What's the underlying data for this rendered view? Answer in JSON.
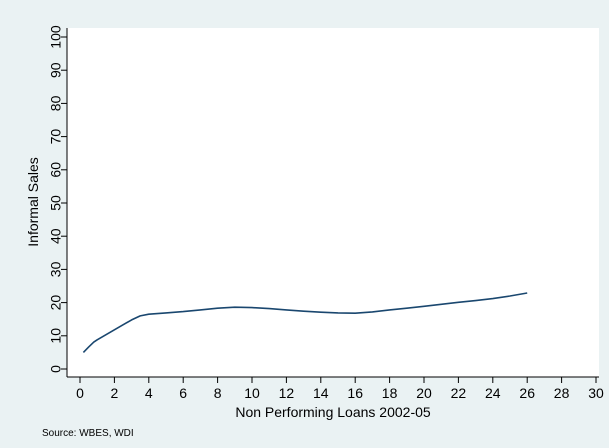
{
  "chart_data": {
    "type": "line",
    "title": "",
    "xlabel": "Non Performing Loans 2002-05",
    "ylabel": "Informal Sales",
    "note": "Source: WBES, WDI",
    "xlim": [
      0,
      30
    ],
    "ylim": [
      0,
      100
    ],
    "x_ticks": [
      0,
      2,
      4,
      6,
      8,
      10,
      12,
      14,
      16,
      18,
      20,
      22,
      24,
      26,
      28,
      30
    ],
    "y_ticks": [
      0,
      10,
      20,
      30,
      40,
      50,
      60,
      70,
      80,
      90,
      100
    ],
    "grid": false,
    "legend": "none",
    "colors": {
      "line": "#1a476f",
      "plot_bg": "#ffffff",
      "figure_bg": "#eaf2f3"
    },
    "series": [
      {
        "x": [
          0.2,
          0.5,
          0.8,
          1.0,
          1.5,
          2.0,
          2.5,
          3.0,
          3.5,
          4.0,
          4.5,
          5.0,
          6.0,
          7.0,
          8.0,
          9.0,
          10.0,
          11.0,
          12.0,
          13.0,
          14.0,
          15.0,
          16.0,
          17.0,
          18.0,
          19.0,
          20.0,
          21.0,
          22.0,
          23.0,
          24.0,
          25.0,
          26.0
        ],
        "y": [
          5.0,
          6.6,
          8.1,
          8.8,
          10.3,
          11.8,
          13.3,
          14.8,
          16.0,
          16.5,
          16.7,
          16.9,
          17.3,
          17.8,
          18.3,
          18.6,
          18.5,
          18.2,
          17.8,
          17.4,
          17.1,
          16.9,
          16.8,
          17.2,
          17.8,
          18.3,
          18.9,
          19.5,
          20.1,
          20.6,
          21.2,
          22.0,
          22.9
        ]
      }
    ]
  }
}
